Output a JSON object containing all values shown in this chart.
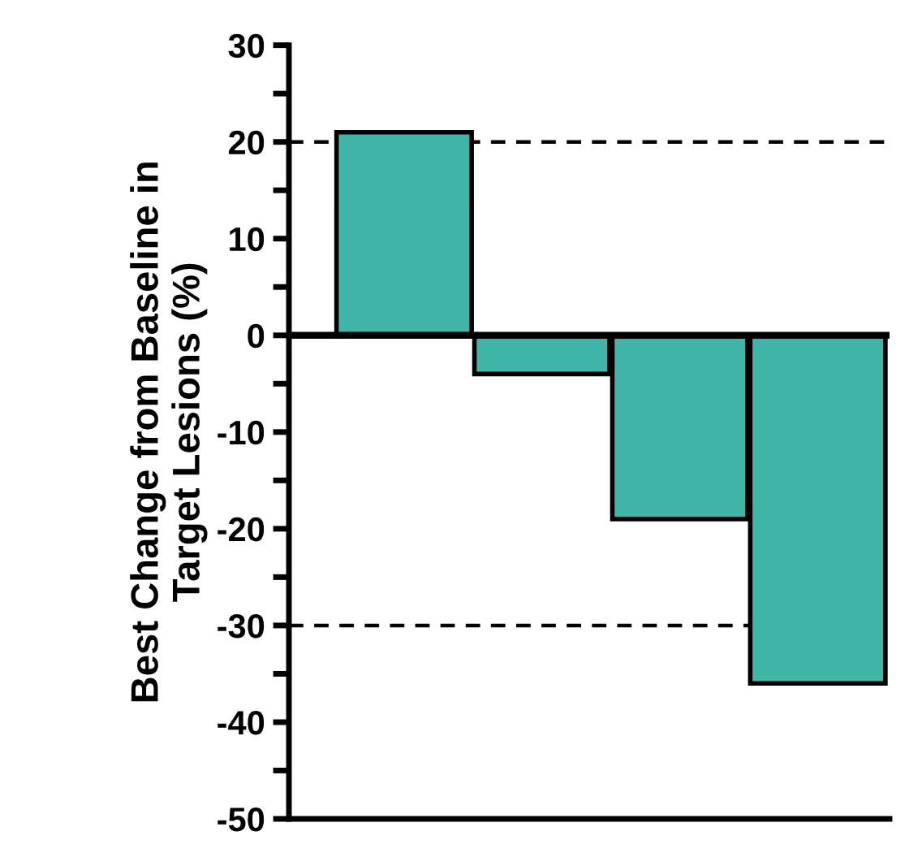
{
  "chart_data": {
    "type": "bar",
    "ylabel": "Best Change from Baseline in\nTarget Lesions (%)",
    "categories": [
      null,
      null,
      null,
      null
    ],
    "values": [
      21,
      -4,
      -19,
      -36
    ],
    "color": "#40b5a8",
    "ylim": [
      -50,
      30
    ],
    "yticks": [
      -50,
      {
        "value": -45,
        "label": null
      },
      -40,
      {
        "value": -35,
        "label": null
      },
      -30,
      {
        "value": -25,
        "label": null
      },
      -20,
      {
        "value": -15,
        "label": null
      },
      -10,
      {
        "value": -5,
        "label": null
      },
      0,
      {
        "value": 5,
        "label": null
      },
      10,
      {
        "value": 15,
        "label": null
      },
      20,
      {
        "value": 25,
        "label": null
      },
      30
    ],
    "ref_lines": [
      {
        "axis": "y",
        "value": 20,
        "line_style": "dashed"
      },
      {
        "axis": "y",
        "value": -30,
        "line_style": "dashed"
      },
      {
        "axis": "y",
        "value": 0,
        "line_style": "solid"
      }
    ],
    "grid": false,
    "legend": false
  }
}
